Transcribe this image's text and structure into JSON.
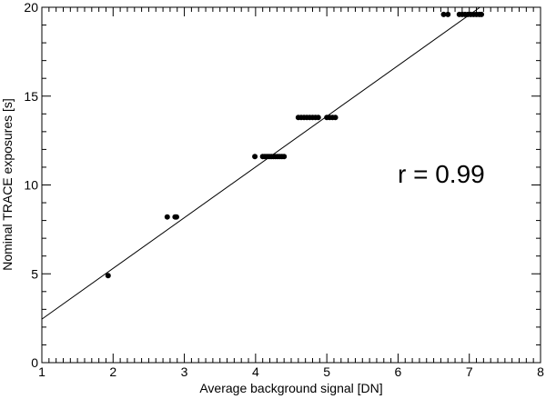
{
  "chart_data": {
    "type": "scatter",
    "xlabel": "Average background signal [DN]",
    "ylabel": "Nominal TRACE exposures [s]",
    "xlim": [
      1,
      8
    ],
    "ylim": [
      0,
      20
    ],
    "x_ticks": [
      1,
      2,
      3,
      4,
      5,
      6,
      7,
      8
    ],
    "y_ticks": [
      0,
      5,
      10,
      15,
      20
    ],
    "x_tick_labels": [
      "1",
      "2",
      "3",
      "4",
      "5",
      "6",
      "7",
      "8"
    ],
    "y_tick_labels": [
      "0",
      "5",
      "10",
      "15",
      "20"
    ],
    "grid": false,
    "annotation": "r = 0.99",
    "fit_line": {
      "x": [
        1,
        7.15
      ],
      "y": [
        2.45,
        20
      ]
    },
    "series": [
      {
        "points": [
          {
            "x": 1.93,
            "y": 4.9
          },
          {
            "x": 2.76,
            "y": 8.2
          },
          {
            "x": 2.87,
            "y": 8.2
          },
          {
            "x": 2.89,
            "y": 8.2
          },
          {
            "x": 3.99,
            "y": 11.6
          },
          {
            "x": 4.1,
            "y": 11.6
          },
          {
            "x": 4.13,
            "y": 11.6
          },
          {
            "x": 4.16,
            "y": 11.6
          },
          {
            "x": 4.19,
            "y": 11.6
          },
          {
            "x": 4.22,
            "y": 11.6
          },
          {
            "x": 4.25,
            "y": 11.6
          },
          {
            "x": 4.28,
            "y": 11.6
          },
          {
            "x": 4.31,
            "y": 11.6
          },
          {
            "x": 4.34,
            "y": 11.6
          },
          {
            "x": 4.37,
            "y": 11.6
          },
          {
            "x": 4.4,
            "y": 11.6
          },
          {
            "x": 4.6,
            "y": 13.8
          },
          {
            "x": 4.64,
            "y": 13.8
          },
          {
            "x": 4.68,
            "y": 13.8
          },
          {
            "x": 4.72,
            "y": 13.8
          },
          {
            "x": 4.76,
            "y": 13.8
          },
          {
            "x": 4.8,
            "y": 13.8
          },
          {
            "x": 4.84,
            "y": 13.8
          },
          {
            "x": 4.88,
            "y": 13.8
          },
          {
            "x": 5.0,
            "y": 13.8
          },
          {
            "x": 5.04,
            "y": 13.8
          },
          {
            "x": 5.08,
            "y": 13.8
          },
          {
            "x": 5.12,
            "y": 13.8
          },
          {
            "x": 6.64,
            "y": 19.6
          },
          {
            "x": 6.7,
            "y": 19.6
          },
          {
            "x": 6.86,
            "y": 19.6
          },
          {
            "x": 6.9,
            "y": 19.6
          },
          {
            "x": 6.94,
            "y": 19.6
          },
          {
            "x": 6.98,
            "y": 19.6
          },
          {
            "x": 7.02,
            "y": 19.6
          },
          {
            "x": 7.06,
            "y": 19.6
          },
          {
            "x": 7.1,
            "y": 19.6
          },
          {
            "x": 7.14,
            "y": 19.6
          },
          {
            "x": 7.17,
            "y": 19.6
          }
        ]
      }
    ]
  }
}
